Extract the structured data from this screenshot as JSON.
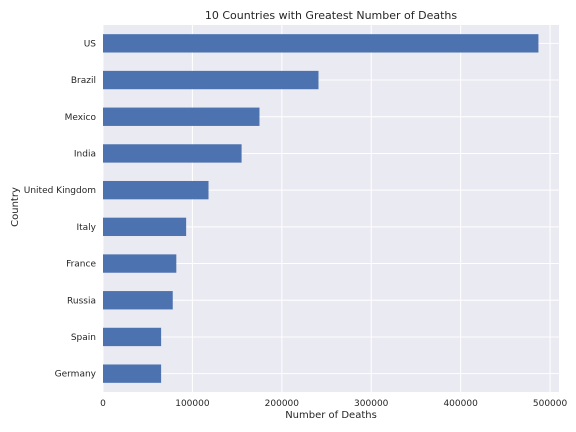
{
  "chart_data": {
    "type": "bar",
    "orientation": "horizontal",
    "title": "10 Countries with Greatest Number of Deaths",
    "xlabel": "Number of Deaths",
    "ylabel": "Country",
    "categories": [
      "US",
      "Brazil",
      "Mexico",
      "India",
      "United Kingdom",
      "Italy",
      "France",
      "Russia",
      "Spain",
      "Germany"
    ],
    "values": [
      487000,
      241000,
      175000,
      155000,
      118000,
      93000,
      82000,
      78000,
      65000,
      65000
    ],
    "xlim": [
      0,
      510000
    ],
    "xticks": [
      0,
      100000,
      200000,
      300000,
      400000,
      500000
    ],
    "xtick_labels": [
      "0",
      "100000",
      "200000",
      "300000",
      "400000",
      "500000"
    ],
    "grid": true,
    "colors": {
      "bar": "#4c72b0",
      "plot_background": "#eaeaf2",
      "grid": "#ffffff"
    }
  }
}
